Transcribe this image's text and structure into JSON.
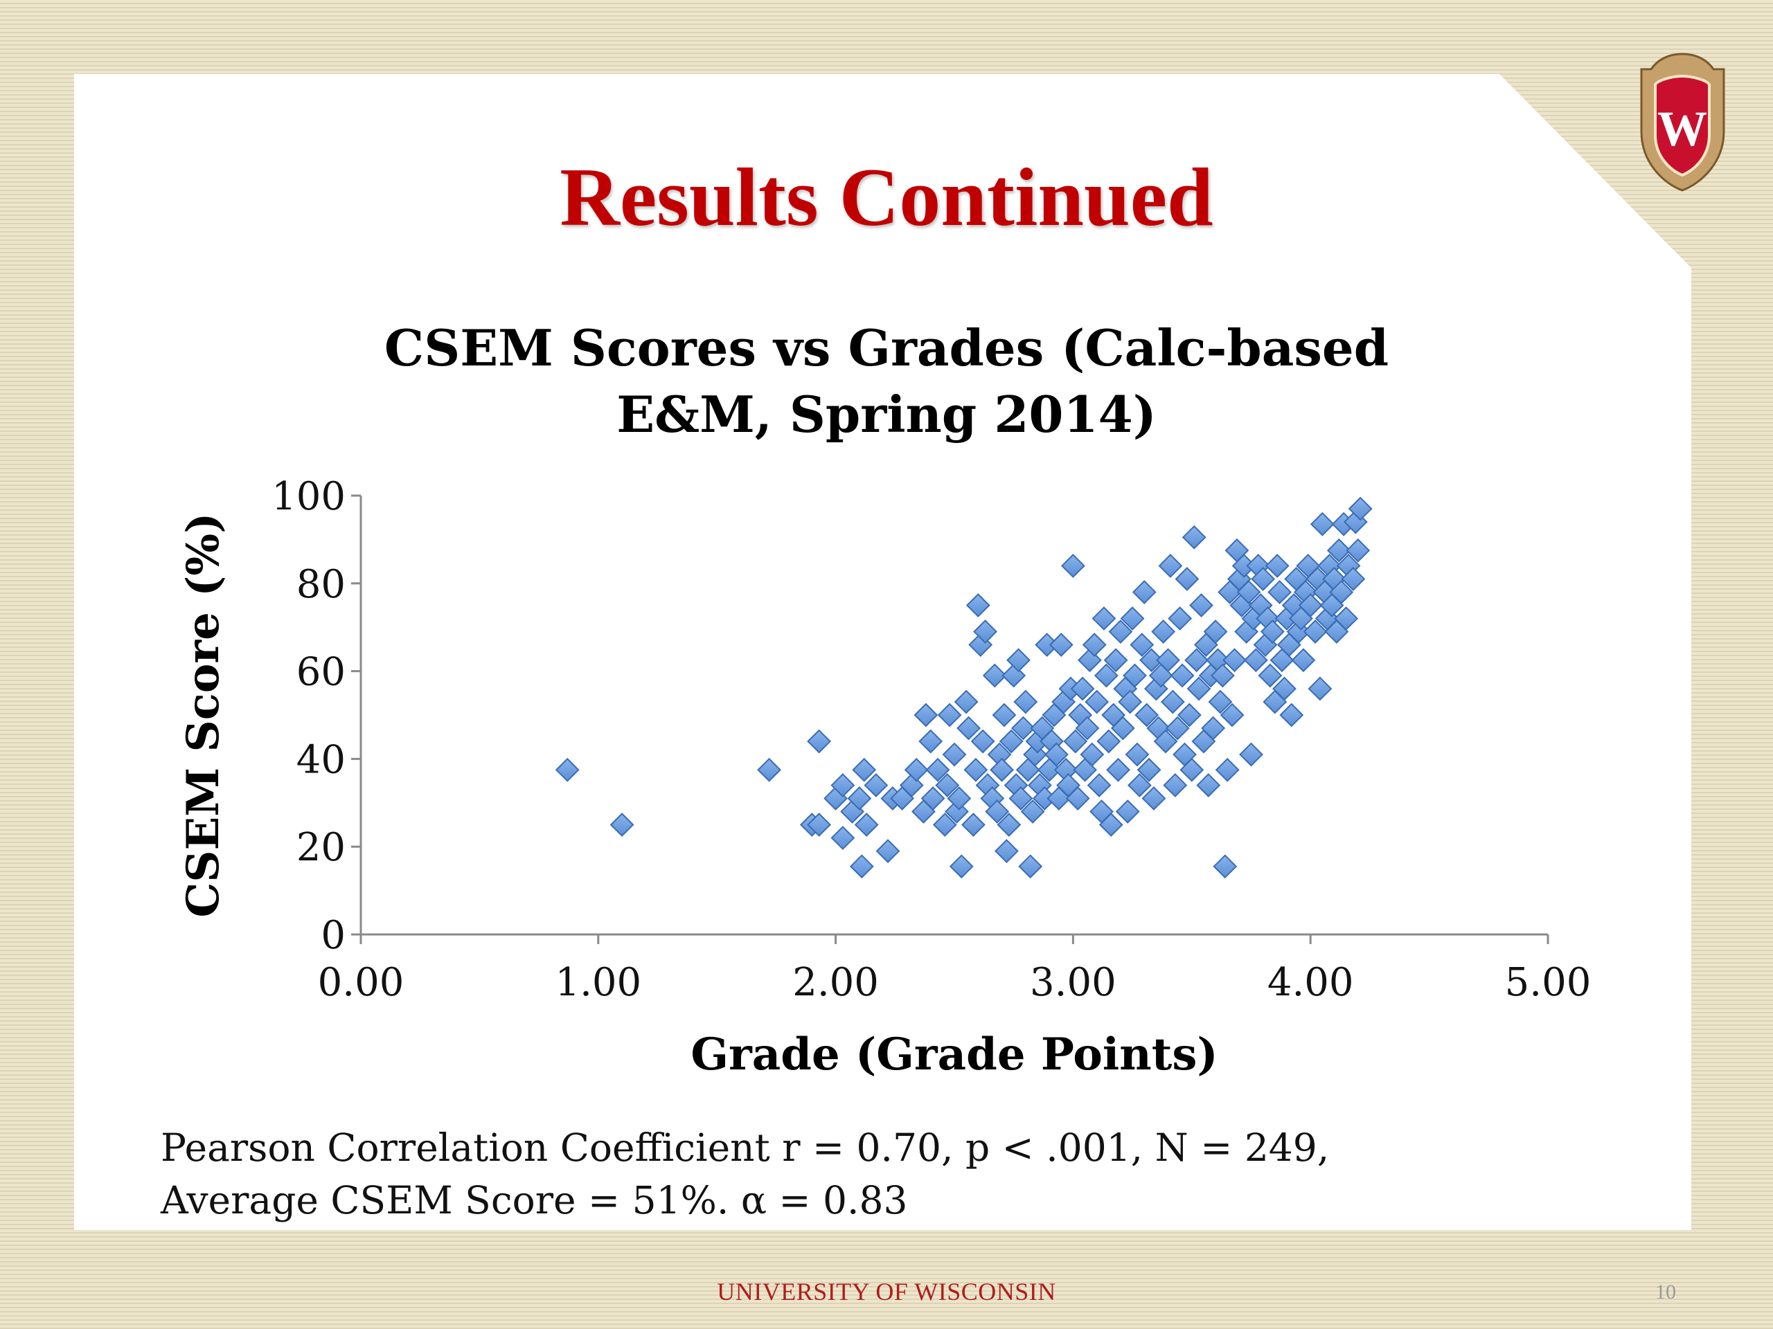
{
  "slide": {
    "title": "Results Continued",
    "footer": "UNIVERSITY OF WISCONSIN",
    "page_number": "10",
    "note_line1": "Pearson Correlation Coefficient r = 0.70, p < .001, N = 249,",
    "note_line2": "Average CSEM Score = 51%. α = 0.83",
    "logo": "uw-crest-icon",
    "colors": {
      "title": "#c00000",
      "footer": "#b01c1c",
      "marker": "#5b8fd6",
      "marker_edge": "#3a6cb4"
    }
  },
  "chart_data": {
    "type": "scatter",
    "title_line1": "CSEM Scores vs Grades (Calc-based",
    "title_line2": "E&M, Spring 2014)",
    "xlabel": "Grade (Grade Points)",
    "ylabel": "CSEM Score (%)",
    "xlim": [
      0,
      5
    ],
    "ylim": [
      0,
      100
    ],
    "xticks": [
      "0.00",
      "1.00",
      "2.00",
      "3.00",
      "4.00",
      "5.00"
    ],
    "yticks": [
      "0",
      "20",
      "40",
      "60",
      "80",
      "100"
    ],
    "grid": false,
    "legend": "none",
    "marker": "diamond",
    "points": [
      [
        0.87,
        37.5
      ],
      [
        1.1,
        25
      ],
      [
        1.72,
        37.5
      ],
      [
        1.9,
        25
      ],
      [
        1.93,
        44
      ],
      [
        1.93,
        25
      ],
      [
        2.0,
        31
      ],
      [
        2.03,
        34
      ],
      [
        2.03,
        22
      ],
      [
        2.07,
        28
      ],
      [
        2.1,
        31
      ],
      [
        2.11,
        15.5
      ],
      [
        2.12,
        37.5
      ],
      [
        2.13,
        25
      ],
      [
        2.17,
        34
      ],
      [
        2.22,
        19
      ],
      [
        2.24,
        31
      ],
      [
        2.28,
        31
      ],
      [
        2.32,
        34
      ],
      [
        2.34,
        37.5
      ],
      [
        2.37,
        28
      ],
      [
        2.38,
        50
      ],
      [
        2.4,
        44
      ],
      [
        2.41,
        31
      ],
      [
        2.43,
        37.5
      ],
      [
        2.46,
        25
      ],
      [
        2.47,
        34
      ],
      [
        2.48,
        50
      ],
      [
        2.5,
        41
      ],
      [
        2.51,
        28
      ],
      [
        2.52,
        31
      ],
      [
        2.53,
        15.5
      ],
      [
        2.55,
        53
      ],
      [
        2.56,
        47
      ],
      [
        2.58,
        25
      ],
      [
        2.59,
        37.5
      ],
      [
        2.6,
        75
      ],
      [
        2.61,
        66
      ],
      [
        2.62,
        44
      ],
      [
        2.63,
        69
      ],
      [
        2.64,
        34
      ],
      [
        2.66,
        31
      ],
      [
        2.67,
        59
      ],
      [
        2.68,
        28
      ],
      [
        2.69,
        41
      ],
      [
        2.7,
        37.5
      ],
      [
        2.71,
        50
      ],
      [
        2.72,
        19
      ],
      [
        2.73,
        25
      ],
      [
        2.74,
        44
      ],
      [
        2.75,
        59
      ],
      [
        2.76,
        34
      ],
      [
        2.77,
        62.5
      ],
      [
        2.78,
        31
      ],
      [
        2.79,
        47
      ],
      [
        2.8,
        53
      ],
      [
        2.81,
        37.5
      ],
      [
        2.82,
        15.5
      ],
      [
        2.83,
        28
      ],
      [
        2.84,
        41
      ],
      [
        2.85,
        44
      ],
      [
        2.86,
        34
      ],
      [
        2.87,
        47
      ],
      [
        2.88,
        31
      ],
      [
        2.89,
        66
      ],
      [
        2.9,
        37.5
      ],
      [
        2.91,
        44
      ],
      [
        2.92,
        50
      ],
      [
        2.93,
        41
      ],
      [
        2.94,
        31
      ],
      [
        2.95,
        66
      ],
      [
        2.96,
        53
      ],
      [
        2.97,
        37.5
      ],
      [
        2.98,
        34
      ],
      [
        2.99,
        56
      ],
      [
        3.0,
        84
      ],
      [
        3.01,
        44
      ],
      [
        3.02,
        31
      ],
      [
        3.03,
        50
      ],
      [
        3.04,
        56
      ],
      [
        3.05,
        37.5
      ],
      [
        3.06,
        47
      ],
      [
        3.07,
        62.5
      ],
      [
        3.08,
        41
      ],
      [
        3.09,
        66
      ],
      [
        3.1,
        53
      ],
      [
        3.11,
        34
      ],
      [
        3.12,
        28
      ],
      [
        3.13,
        72
      ],
      [
        3.14,
        59
      ],
      [
        3.15,
        44
      ],
      [
        3.16,
        25
      ],
      [
        3.17,
        50
      ],
      [
        3.18,
        62.5
      ],
      [
        3.19,
        37.5
      ],
      [
        3.2,
        69
      ],
      [
        3.21,
        47
      ],
      [
        3.22,
        56
      ],
      [
        3.23,
        28
      ],
      [
        3.24,
        53
      ],
      [
        3.25,
        72
      ],
      [
        3.26,
        59
      ],
      [
        3.27,
        41
      ],
      [
        3.28,
        34
      ],
      [
        3.29,
        66
      ],
      [
        3.3,
        78
      ],
      [
        3.31,
        50
      ],
      [
        3.32,
        37.5
      ],
      [
        3.33,
        62.5
      ],
      [
        3.34,
        31
      ],
      [
        3.35,
        56
      ],
      [
        3.36,
        47
      ],
      [
        3.37,
        59
      ],
      [
        3.38,
        69
      ],
      [
        3.39,
        44
      ],
      [
        3.4,
        62.5
      ],
      [
        3.41,
        84
      ],
      [
        3.42,
        53
      ],
      [
        3.43,
        34
      ],
      [
        3.44,
        47
      ],
      [
        3.45,
        72
      ],
      [
        3.46,
        59
      ],
      [
        3.47,
        41
      ],
      [
        3.48,
        81
      ],
      [
        3.49,
        50
      ],
      [
        3.5,
        37.5
      ],
      [
        3.51,
        90.5
      ],
      [
        3.52,
        62.5
      ],
      [
        3.53,
        56
      ],
      [
        3.54,
        75
      ],
      [
        3.55,
        44
      ],
      [
        3.56,
        66
      ],
      [
        3.57,
        34
      ],
      [
        3.58,
        59
      ],
      [
        3.59,
        47
      ],
      [
        3.6,
        69
      ],
      [
        3.61,
        62.5
      ],
      [
        3.62,
        53
      ],
      [
        3.63,
        59
      ],
      [
        3.64,
        15.5
      ],
      [
        3.65,
        37.5
      ],
      [
        3.66,
        78
      ],
      [
        3.67,
        50
      ],
      [
        3.68,
        62.5
      ],
      [
        3.69,
        87.5
      ],
      [
        3.7,
        81
      ],
      [
        3.71,
        75
      ],
      [
        3.72,
        84
      ],
      [
        3.73,
        69
      ],
      [
        3.74,
        78
      ],
      [
        3.75,
        41
      ],
      [
        3.76,
        72
      ],
      [
        3.77,
        62.5
      ],
      [
        3.78,
        84
      ],
      [
        3.79,
        75
      ],
      [
        3.8,
        81
      ],
      [
        3.81,
        66
      ],
      [
        3.82,
        72
      ],
      [
        3.83,
        59
      ],
      [
        3.84,
        69
      ],
      [
        3.85,
        53
      ],
      [
        3.86,
        84
      ],
      [
        3.87,
        78
      ],
      [
        3.88,
        62.5
      ],
      [
        3.89,
        56
      ],
      [
        3.9,
        72
      ],
      [
        3.91,
        66
      ],
      [
        3.92,
        50
      ],
      [
        3.93,
        75
      ],
      [
        3.94,
        81
      ],
      [
        3.95,
        69
      ],
      [
        3.96,
        72
      ],
      [
        3.97,
        62.5
      ],
      [
        3.98,
        78
      ],
      [
        3.99,
        84
      ],
      [
        4.0,
        75
      ],
      [
        4.02,
        69
      ],
      [
        4.03,
        81
      ],
      [
        4.04,
        56
      ],
      [
        4.05,
        93.5
      ],
      [
        4.06,
        78
      ],
      [
        4.07,
        72
      ],
      [
        4.08,
        84
      ],
      [
        4.09,
        75
      ],
      [
        4.1,
        81
      ],
      [
        4.11,
        69
      ],
      [
        4.12,
        87.5
      ],
      [
        4.13,
        78
      ],
      [
        4.14,
        93.5
      ],
      [
        4.15,
        72
      ],
      [
        4.16,
        84
      ],
      [
        4.18,
        81
      ],
      [
        4.19,
        94
      ],
      [
        4.2,
        87.5
      ],
      [
        4.21,
        97
      ]
    ]
  }
}
